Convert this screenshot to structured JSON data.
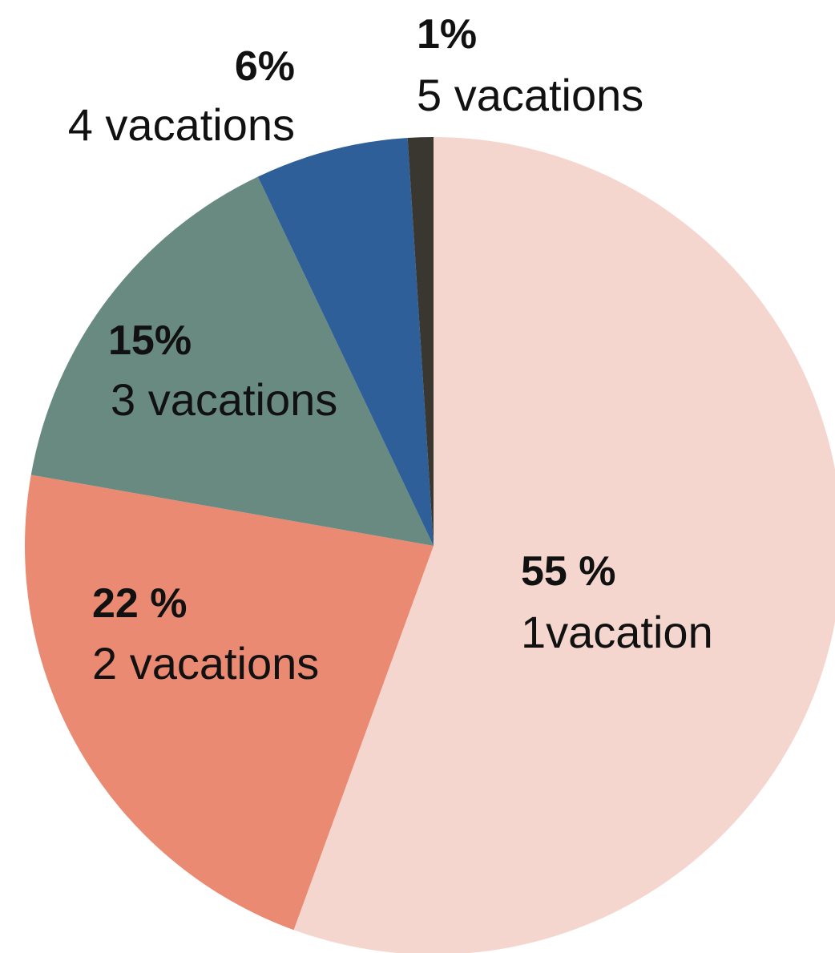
{
  "chart_data": {
    "type": "pie",
    "categories": [
      "1vacation",
      "2 vacations",
      "3 vacations",
      "4 vacations",
      "5 vacations"
    ],
    "values": [
      55,
      22,
      15,
      6,
      1
    ],
    "value_labels": [
      "55 %",
      "22 %",
      "15%",
      "6%",
      "1%"
    ],
    "colors": [
      "#f5d6cf",
      "#eb8a72",
      "#688a80",
      "#2e5f98",
      "#3a3630"
    ]
  }
}
